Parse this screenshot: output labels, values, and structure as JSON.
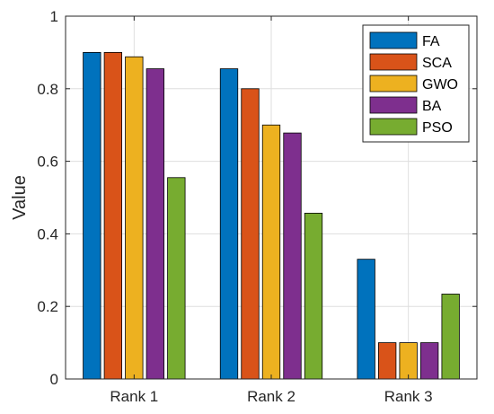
{
  "chart_data": {
    "type": "bar",
    "title": "",
    "xlabel": "",
    "ylabel": "Value",
    "ylim": [
      0,
      1
    ],
    "yticks": [
      "0",
      "0.2",
      "0.4",
      "0.6",
      "0.8",
      "1"
    ],
    "categories": [
      "Rank 1",
      "Rank 2",
      "Rank 3"
    ],
    "grid": true,
    "legend_position": "top-right",
    "series": [
      {
        "name": "FA",
        "color": "#0072BD",
        "values": [
          0.9,
          0.855,
          0.33
        ]
      },
      {
        "name": "SCA",
        "color": "#D95319",
        "values": [
          0.9,
          0.8,
          0.1
        ]
      },
      {
        "name": "GWO",
        "color": "#EDB120",
        "values": [
          0.888,
          0.7,
          0.1
        ]
      },
      {
        "name": "BA",
        "color": "#7E2F8E",
        "values": [
          0.855,
          0.678,
          0.1
        ]
      },
      {
        "name": "PSO",
        "color": "#77AC30",
        "values": [
          0.555,
          0.457,
          0.234
        ]
      }
    ]
  }
}
